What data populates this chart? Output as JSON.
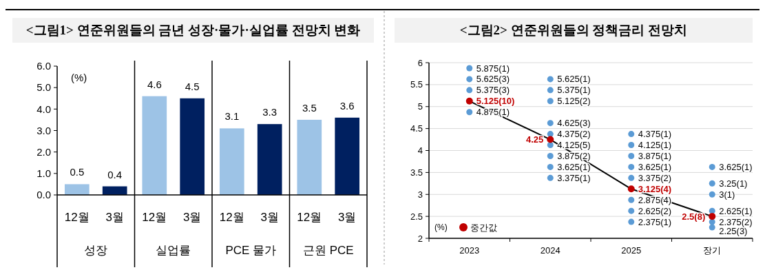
{
  "chart_data": [
    {
      "type": "bar",
      "title": "<그림1> 연준위원들의 금년 성장·물가·실업률 전망치 변화",
      "ylabel": "(%)",
      "categories": [
        "성장",
        "실업률",
        "PCE 물가",
        "근원 PCE"
      ],
      "series": [
        {
          "name": "12월",
          "color": "#9dc3e6",
          "values": [
            0.5,
            4.6,
            3.1,
            3.5
          ]
        },
        {
          "name": "3월",
          "color": "#002060",
          "values": [
            0.4,
            4.5,
            3.3,
            3.6
          ]
        }
      ],
      "ylim": [
        0,
        6
      ],
      "yticks": [
        {
          "value": 0,
          "label": "0.0"
        },
        {
          "value": 1,
          "label": "1.0"
        },
        {
          "value": 2,
          "label": "2.0"
        },
        {
          "value": 3,
          "label": "3.0"
        },
        {
          "value": 4,
          "label": "4.0"
        },
        {
          "value": 5,
          "label": "5.0"
        },
        {
          "value": 6,
          "label": "6.0"
        }
      ],
      "data_labels": true,
      "grid": false
    },
    {
      "type": "scatter",
      "title": "<그림2> 연준위원들의 정책금리 전망치",
      "ylabel": "(%)",
      "categories": [
        "2023",
        "2024",
        "2025",
        "장기"
      ],
      "series": [
        {
          "type": "scatter",
          "color": "#5b9bd5",
          "values": [
            5.875,
            5.625,
            4.375,
            3.625
          ],
          "value_labels": [
            "5.875(1)",
            "5.625(1)",
            "4.375(1)",
            "3.625(1)"
          ]
        },
        {
          "type": "scatter",
          "color": "#5b9bd5",
          "values": [
            5.625,
            5.375,
            4.125,
            3.25
          ],
          "value_labels": [
            "5.625(3)",
            "5.375(1)",
            "4.125(1)",
            "3.25(1)"
          ]
        },
        {
          "type": "scatter",
          "color": "#5b9bd5",
          "values": [
            5.375,
            5.125,
            3.875,
            3
          ],
          "value_labels": [
            "5.375(3)",
            "5.125(2)",
            "3.875(1)",
            "3(1)"
          ]
        },
        {
          "type": "scatter",
          "color": "#5b9bd5",
          "values": [
            4.875,
            4.625,
            3.625,
            2.625
          ],
          "value_labels": [
            "4.875(1)",
            "4.625(3)",
            "3.625(1)",
            "2.625(1)"
          ]
        },
        {
          "type": "scatter",
          "color": "#5b9bd5",
          "values": [
            null,
            4.375,
            3.375,
            2.375
          ],
          "value_labels": [
            null,
            "4.375(2)",
            "3.375(2)",
            "2.375(2)"
          ]
        },
        {
          "type": "scatter",
          "color": "#5b9bd5",
          "values": [
            null,
            4.125,
            2.875,
            2.25
          ],
          "value_labels": [
            null,
            "4.125(5)",
            "2.875(4)",
            "2.25(3)"
          ]
        },
        {
          "type": "scatter",
          "color": "#5b9bd5",
          "values": [
            null,
            3.875,
            2.625,
            null
          ],
          "value_labels": [
            null,
            "3.875(2)",
            "2.625(2)",
            null
          ]
        },
        {
          "type": "scatter",
          "color": "#5b9bd5",
          "values": [
            null,
            3.625,
            2.375,
            null
          ],
          "value_labels": [
            null,
            "3.625(1)",
            "2.375(1)",
            null
          ]
        },
        {
          "type": "scatter",
          "color": "#5b9bd5",
          "values": [
            null,
            3.375,
            null,
            null
          ],
          "value_labels": [
            null,
            "3.375(1)",
            null,
            null
          ]
        },
        {
          "type": "line",
          "color": "#000000",
          "values": [
            5.125,
            4.25,
            3.125,
            2.5
          ]
        },
        {
          "type": "scatter",
          "name": "중간값",
          "color": "#c00000",
          "values": [
            5.125,
            4.25,
            3.125,
            2.5
          ],
          "value_labels": [
            "5.125(10)",
            "4.25",
            "3.125(4)",
            "2.5(8)"
          ]
        }
      ],
      "ylim": [
        2,
        6
      ],
      "yticks": [
        2,
        2.5,
        3,
        3.5,
        4,
        4.5,
        5,
        5.5,
        6
      ],
      "grid": "y",
      "legend": "bottom left"
    }
  ]
}
